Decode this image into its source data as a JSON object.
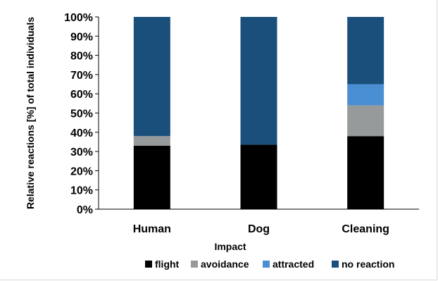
{
  "chart_data": {
    "type": "bar",
    "stacked": true,
    "categories": [
      "Human",
      "Dog",
      "Cleaning"
    ],
    "series": [
      {
        "name": "flight",
        "color": "#000000",
        "values": [
          33,
          33.5,
          38
        ]
      },
      {
        "name": "avoidance",
        "color": "#979a9a",
        "values": [
          5,
          0,
          16
        ]
      },
      {
        "name": "attracted",
        "color": "#4a8fd4",
        "values": [
          0,
          0,
          11
        ]
      },
      {
        "name": "no reaction",
        "color": "#1b4f7b",
        "values": [
          62,
          66.5,
          35
        ]
      }
    ],
    "xlabel": "Impact",
    "ylabel": "Relative reactions [%]  of total individuals",
    "ylim": [
      0,
      100
    ],
    "yticks": [
      0,
      10,
      20,
      30,
      40,
      50,
      60,
      70,
      80,
      90,
      100
    ],
    "ytick_suffix": "%",
    "grid": false,
    "legend_position": "bottom"
  }
}
